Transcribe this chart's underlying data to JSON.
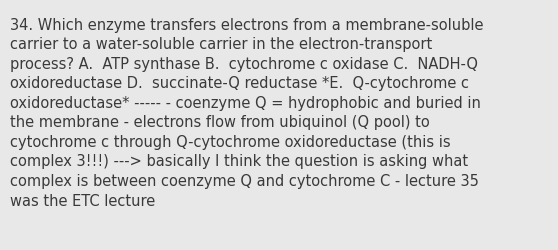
{
  "background_color": "#e8e8e8",
  "text_color": "#3a3a3a",
  "font_size": 10.5,
  "font_family": "DejaVu Sans",
  "figwidth": 5.58,
  "figheight": 2.51,
  "dpi": 100,
  "line1": "34. Which enzyme transfers electrons from a membrane-soluble",
  "line2": "carrier to a water-soluble carrier in the electron-transport",
  "line3": "process? A.  ATP synthase B.  cytochrome c oxidase C.  NADH-Q",
  "line4": "oxidoreductase D.  succinate-Q reductase *E.  Q-cytochrome c",
  "line5": "oxidoreductase* ----- - coenzyme Q = hydrophobic and buried in",
  "line6": "the membrane - electrons flow from ubiquinol (Q pool) to",
  "line7": "cytochrome c through Q-cytochrome oxidoreductase (this is",
  "line8": "complex 3!!!) ---> basically I think the question is asking what",
  "line9": "complex is between coenzyme Q and cytochrome C - lecture 35",
  "line10": "was the ETC lecture"
}
